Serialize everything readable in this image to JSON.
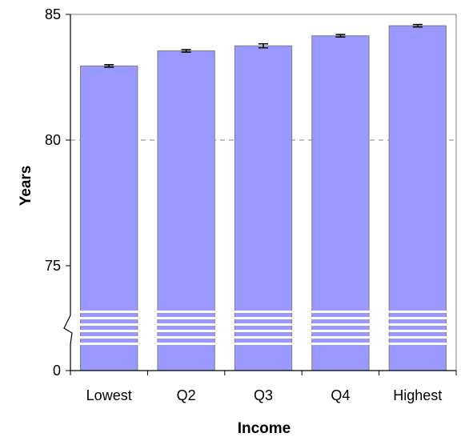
{
  "chart_data": {
    "type": "bar",
    "categories": [
      "Lowest",
      "Q2",
      "Q3",
      "Q4",
      "Highest"
    ],
    "values": [
      82.95,
      83.55,
      83.75,
      84.15,
      84.55
    ],
    "error": [
      0.05,
      0.05,
      0.08,
      0.05,
      0.05
    ],
    "xlabel": "Income",
    "ylabel": "Years",
    "ylim": [
      75,
      85
    ],
    "yticks": [
      "0",
      "75",
      "80",
      "85"
    ],
    "axis_break": true,
    "grid": "horizontal dashed",
    "colors": {
      "bar": "#9999ff",
      "bar_border": "#7f7f7f",
      "grid": "#808080",
      "break_stripe": "#ffffff"
    }
  }
}
